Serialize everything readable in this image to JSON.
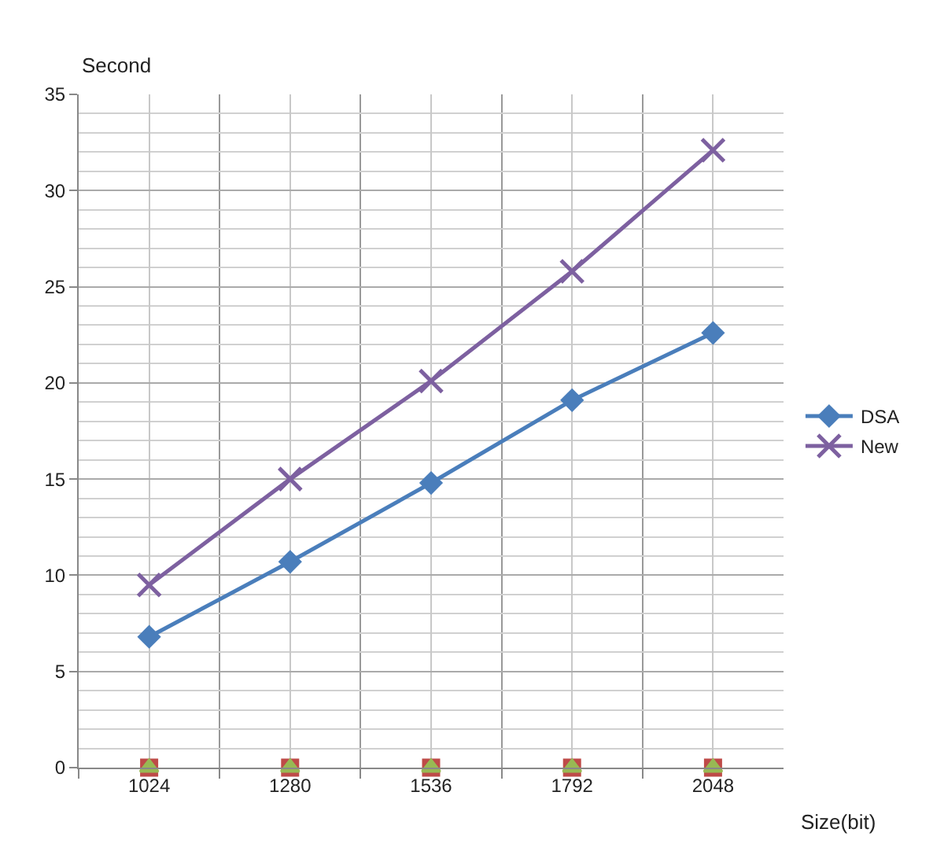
{
  "chart_data": {
    "type": "line",
    "ylabel": "Second",
    "xlabel": "Size(bit)",
    "categories": [
      "1024",
      "1280",
      "1536",
      "1792",
      "2048"
    ],
    "ylim": [
      0,
      35
    ],
    "yticks": [
      0,
      5,
      10,
      15,
      20,
      25,
      30,
      35
    ],
    "grid": true,
    "legend": "right",
    "series": [
      {
        "name": "DSA",
        "color": "#4a7ebb",
        "marker": "diamond",
        "values": [
          6.8,
          10.7,
          14.8,
          19.1,
          22.6
        ]
      },
      {
        "name": "New",
        "color": "#7d60a0",
        "marker": "cross",
        "values": [
          9.5,
          15.0,
          20.1,
          25.8,
          32.1
        ]
      },
      {
        "type": "scatter",
        "color": "#be4b48",
        "marker": "square",
        "values": [
          0,
          0,
          0,
          0,
          0
        ]
      },
      {
        "type": "scatter",
        "color": "#98b954",
        "marker": "triangle",
        "values": [
          0,
          0,
          0,
          0,
          0
        ]
      }
    ]
  }
}
